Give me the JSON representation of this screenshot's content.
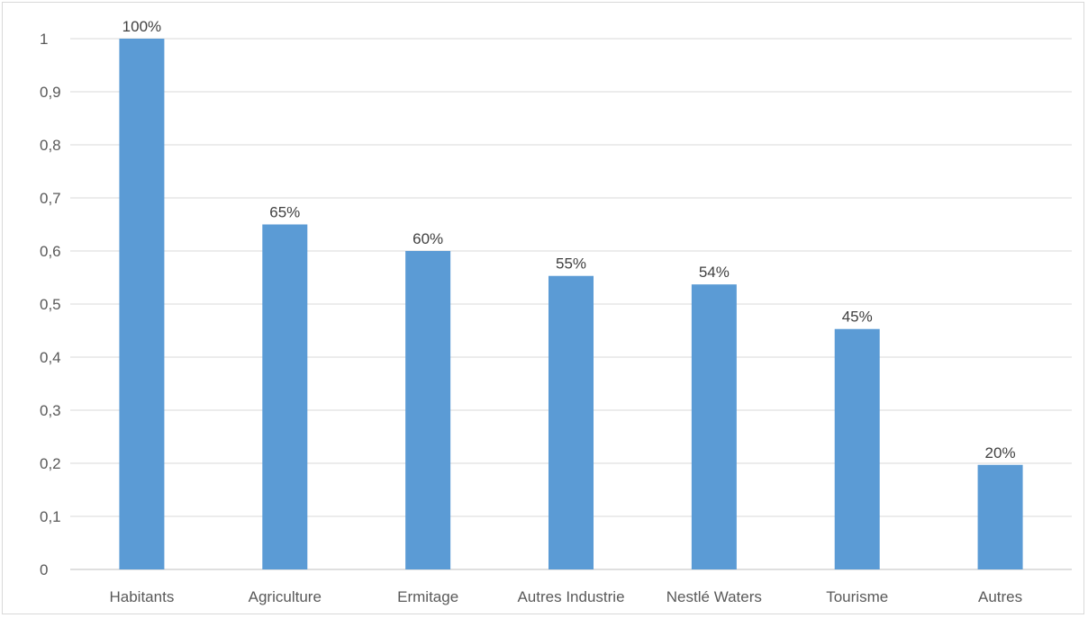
{
  "chart_data": {
    "type": "bar",
    "categories": [
      "Habitants",
      "Agriculture",
      "Ermitage",
      "Autres Industrie",
      "Nestlé Waters",
      "Tourisme",
      "Autres"
    ],
    "values": [
      1.0,
      0.65,
      0.6,
      0.553,
      0.537,
      0.453,
      0.197
    ],
    "data_labels": [
      "100%",
      "65%",
      "60%",
      "55%",
      "54%",
      "45%",
      "20%"
    ],
    "y_ticks": [
      "0",
      "0,1",
      "0,2",
      "0,3",
      "0,4",
      "0,5",
      "0,6",
      "0,7",
      "0,8",
      "0,9",
      "1"
    ],
    "ylim": [
      0,
      1
    ],
    "grid": true,
    "legend": "none",
    "title": "",
    "xlabel": "",
    "ylabel": "",
    "colors": {
      "bar": "#5b9bd5",
      "grid": "#d9d9d9",
      "axis": "#bfbfbf"
    }
  }
}
